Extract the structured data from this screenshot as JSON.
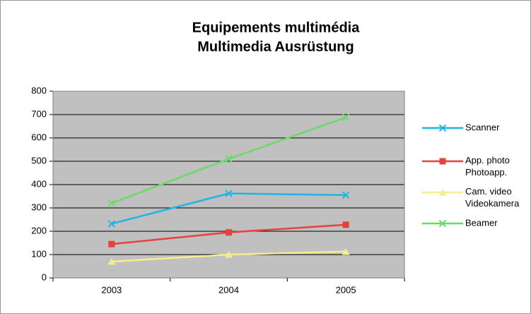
{
  "chart_data": {
    "type": "line",
    "title": [
      "Equipements multimédia",
      "Multimedia Ausrüstung"
    ],
    "categories": [
      "2003",
      "2004",
      "2005"
    ],
    "series": [
      {
        "name": "Scanner",
        "color": "#1eb4e6",
        "marker": "x",
        "values": [
          232,
          362,
          355
        ]
      },
      {
        "name": "App. photo\nPhotoapp.",
        "color": "#e8403c",
        "marker": "square",
        "values": [
          145,
          195,
          228
        ]
      },
      {
        "name": "Cam. video\nVideokamera",
        "color": "#f6ee8a",
        "marker": "triangle",
        "values": [
          70,
          100,
          113
        ]
      },
      {
        "name": "Beamer",
        "color": "#66dd66",
        "marker": "x",
        "values": [
          320,
          510,
          688
        ]
      }
    ],
    "ylim": [
      0,
      800
    ],
    "yticks": [
      0,
      100,
      200,
      300,
      400,
      500,
      600,
      700,
      800
    ],
    "grid": true,
    "legend": "right"
  }
}
